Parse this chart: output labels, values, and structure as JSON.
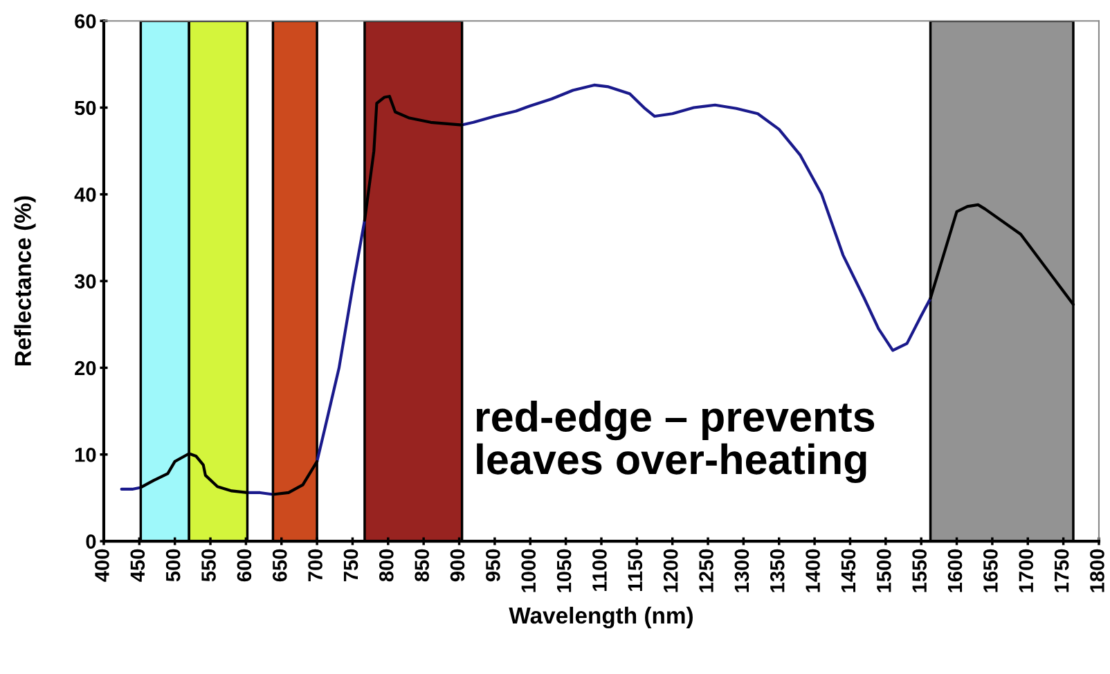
{
  "chart_data": {
    "type": "line",
    "xlabel": "Wavelength (nm)",
    "ylabel": "Reflectance (%)",
    "x": [
      425,
      440,
      452,
      470,
      490,
      500,
      520,
      530,
      540,
      543,
      560,
      580,
      602,
      620,
      638,
      660,
      680,
      700,
      711,
      731,
      751,
      767,
      780,
      784,
      795,
      802,
      810,
      830,
      860,
      904,
      920,
      950,
      980,
      1000,
      1030,
      1060,
      1090,
      1110,
      1140,
      1160,
      1175,
      1200,
      1230,
      1260,
      1290,
      1320,
      1350,
      1380,
      1410,
      1440,
      1470,
      1490,
      1510,
      1530,
      1550,
      1563,
      1600,
      1615,
      1630,
      1640,
      1690,
      1764
    ],
    "series": [
      {
        "color": "#1a1a8c",
        "values": [
          6.0,
          6.0,
          6.2,
          null,
          null,
          null,
          null,
          null,
          null,
          null,
          null,
          null,
          5.6,
          5.6,
          5.4,
          null,
          null,
          9.2,
          13,
          20,
          29.7,
          37,
          null,
          null,
          null,
          null,
          null,
          null,
          null,
          48.0,
          48.3,
          49,
          49.6,
          50.2,
          51,
          52,
          52.6,
          52.4,
          51.6,
          50,
          49,
          49.3,
          50,
          50.3,
          49.9,
          49.3,
          47.5,
          44.5,
          40,
          33,
          28,
          24.5,
          22,
          22.8,
          26,
          28,
          null,
          null,
          null,
          null,
          null,
          null
        ]
      },
      {
        "color": "#000000",
        "values": [
          null,
          null,
          6.2,
          7,
          7.8,
          9.2,
          10.1,
          9.8,
          8.8,
          7.6,
          6.3,
          5.8,
          5.6,
          null,
          5.4,
          5.6,
          6.5,
          9.2,
          null,
          null,
          null,
          37,
          45,
          50.5,
          51.2,
          51.3,
          49.5,
          48.8,
          48.3,
          48.0,
          null,
          null,
          null,
          null,
          null,
          null,
          null,
          null,
          null,
          null,
          null,
          null,
          null,
          null,
          null,
          null,
          null,
          null,
          null,
          null,
          null,
          null,
          null,
          null,
          null,
          28,
          38,
          38.6,
          38.8,
          38.3,
          35.4,
          27.3
        ]
      }
    ],
    "bands": [
      {
        "axis": "x",
        "from": 452,
        "to": 520,
        "color": "#9ef8fa"
      },
      {
        "axis": "x",
        "from": 520,
        "to": 602,
        "color": "#d4f53c"
      },
      {
        "axis": "x",
        "from": 638,
        "to": 700,
        "color": "#cc4a1e"
      },
      {
        "axis": "x",
        "from": 767,
        "to": 904,
        "color": "#982320"
      },
      {
        "axis": "x",
        "from": 1563,
        "to": 1764,
        "color": "#939393"
      }
    ],
    "annotations": [
      "red-edge – prevents\nleaves over-heating"
    ],
    "xlim": [
      400,
      1800
    ],
    "xticks": [
      400,
      450,
      500,
      550,
      600,
      650,
      700,
      750,
      800,
      850,
      900,
      950,
      1000,
      1050,
      1100,
      1150,
      1200,
      1250,
      1300,
      1350,
      1400,
      1450,
      1500,
      1550,
      1600,
      1650,
      1700,
      1750,
      1800
    ],
    "ylim": [
      0,
      60
    ],
    "yticks": [
      0,
      10,
      20,
      30,
      40,
      50,
      60
    ],
    "grid": false,
    "marker": "none",
    "line_style": "solid"
  }
}
